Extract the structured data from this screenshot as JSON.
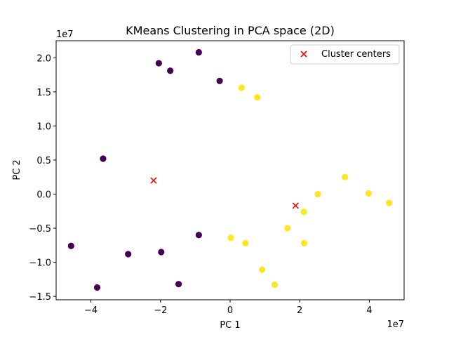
{
  "chart_data": {
    "type": "scatter",
    "title": "KMeans Clustering in PCA space (2D)",
    "xlabel": "PC 1",
    "ylabel": "PC 2",
    "x_offset_label": "1e7",
    "y_offset_label": "1e7",
    "xlim": [
      -5.0,
      5.0
    ],
    "ylim": [
      -1.55,
      2.25
    ],
    "x_ticks": [
      -4,
      -2,
      0,
      2,
      4
    ],
    "x_tick_labels": [
      "−4",
      "−2",
      "0",
      "2",
      "4"
    ],
    "y_ticks": [
      -1.5,
      -1.0,
      -0.5,
      0.0,
      0.5,
      1.0,
      1.5,
      2.0
    ],
    "y_tick_labels": [
      "−1.5",
      "−1.0",
      "−0.5",
      "0.0",
      "0.5",
      "1.0",
      "1.5",
      "2.0"
    ],
    "grid": false,
    "legend": {
      "position": "top-right",
      "entries": [
        "Cluster centers"
      ]
    },
    "colors": {
      "cluster_0": "#440154",
      "cluster_1": "#fde725",
      "centers": "#ff0000"
    },
    "series": [
      {
        "cluster": 0,
        "points": [
          {
            "x": -0.9,
            "y": 2.08
          },
          {
            "x": -2.05,
            "y": 1.92
          },
          {
            "x": -1.72,
            "y": 1.81
          },
          {
            "x": -0.3,
            "y": 1.66
          },
          {
            "x": -3.65,
            "y": 0.52
          },
          {
            "x": -4.57,
            "y": -0.76
          },
          {
            "x": -3.82,
            "y": -1.37
          },
          {
            "x": -2.93,
            "y": -0.88
          },
          {
            "x": -1.98,
            "y": -0.85
          },
          {
            "x": -0.9,
            "y": -0.6
          },
          {
            "x": -1.48,
            "y": -1.32
          }
        ]
      },
      {
        "cluster": 1,
        "points": [
          {
            "x": 0.33,
            "y": 1.56
          },
          {
            "x": 0.78,
            "y": 1.42
          },
          {
            "x": 3.3,
            "y": 0.25
          },
          {
            "x": 2.52,
            "y": 0.0
          },
          {
            "x": 3.98,
            "y": 0.01
          },
          {
            "x": 4.57,
            "y": -0.13
          },
          {
            "x": 2.12,
            "y": -0.26
          },
          {
            "x": 1.65,
            "y": -0.5
          },
          {
            "x": 0.02,
            "y": -0.64
          },
          {
            "x": 0.44,
            "y": -0.72
          },
          {
            "x": 2.13,
            "y": -0.72
          },
          {
            "x": 0.92,
            "y": -1.11
          },
          {
            "x": 1.28,
            "y": -1.33
          }
        ]
      }
    ],
    "centers": [
      {
        "x": -2.2,
        "y": 0.2
      },
      {
        "x": 1.88,
        "y": -0.17
      }
    ]
  }
}
